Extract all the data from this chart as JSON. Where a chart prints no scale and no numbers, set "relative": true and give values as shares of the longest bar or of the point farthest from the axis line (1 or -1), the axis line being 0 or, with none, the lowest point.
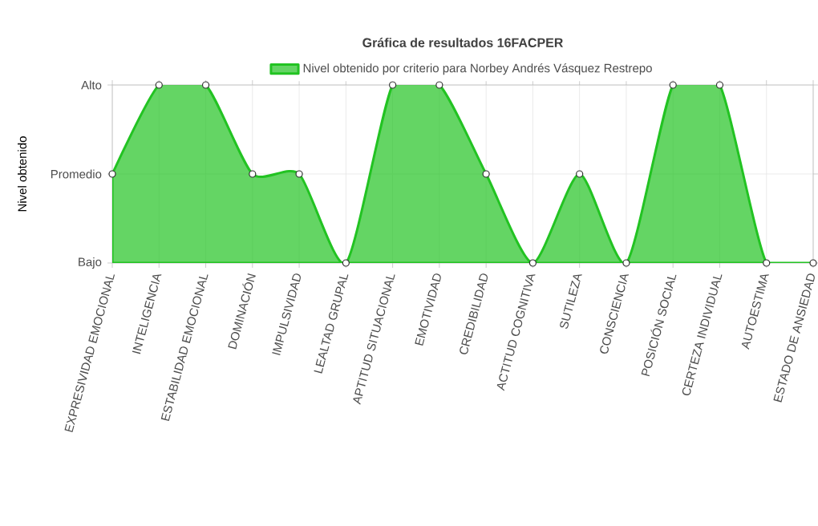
{
  "chart_data": {
    "type": "area",
    "title": "Gráfica de resultados 16FACPER",
    "ylabel": "Nivel obtenido",
    "categories": [
      "EXPRESIVIDAD EMOCIONAL",
      "INTELIGENCIA",
      "ESTABILIDAD EMOCIONAL",
      "DOMINACIÓN",
      "IMPULSIVIDAD",
      "LEALTAD GRUPAL",
      "APTITUD SITUACIONAL",
      "EMOTIVIDAD",
      "CREDIBILIDAD",
      "ACTITUD COGNITIVA",
      "SUTILEZA",
      "CONSCIENCIA",
      "POSICIÓN SOCIAL",
      "CERTEZA INDIVIDUAL",
      "AUTOESTIMA",
      "ESTADO DE ANSIEDAD"
    ],
    "series": [
      {
        "name": "Nivel obtenido por criterio para Norbey Andrés Vásquez Restrepo",
        "color": "#22c322",
        "values": [
          0.5,
          1,
          1,
          0.5,
          0.5,
          0,
          1,
          1,
          0.5,
          0,
          0.5,
          0,
          1,
          1,
          0,
          0
        ]
      }
    ],
    "relative": true,
    "annotations": [
      "Bajo",
      "Promedio",
      "Alto"
    ],
    "grid": true,
    "legend": "top",
    "marker": "circle"
  }
}
